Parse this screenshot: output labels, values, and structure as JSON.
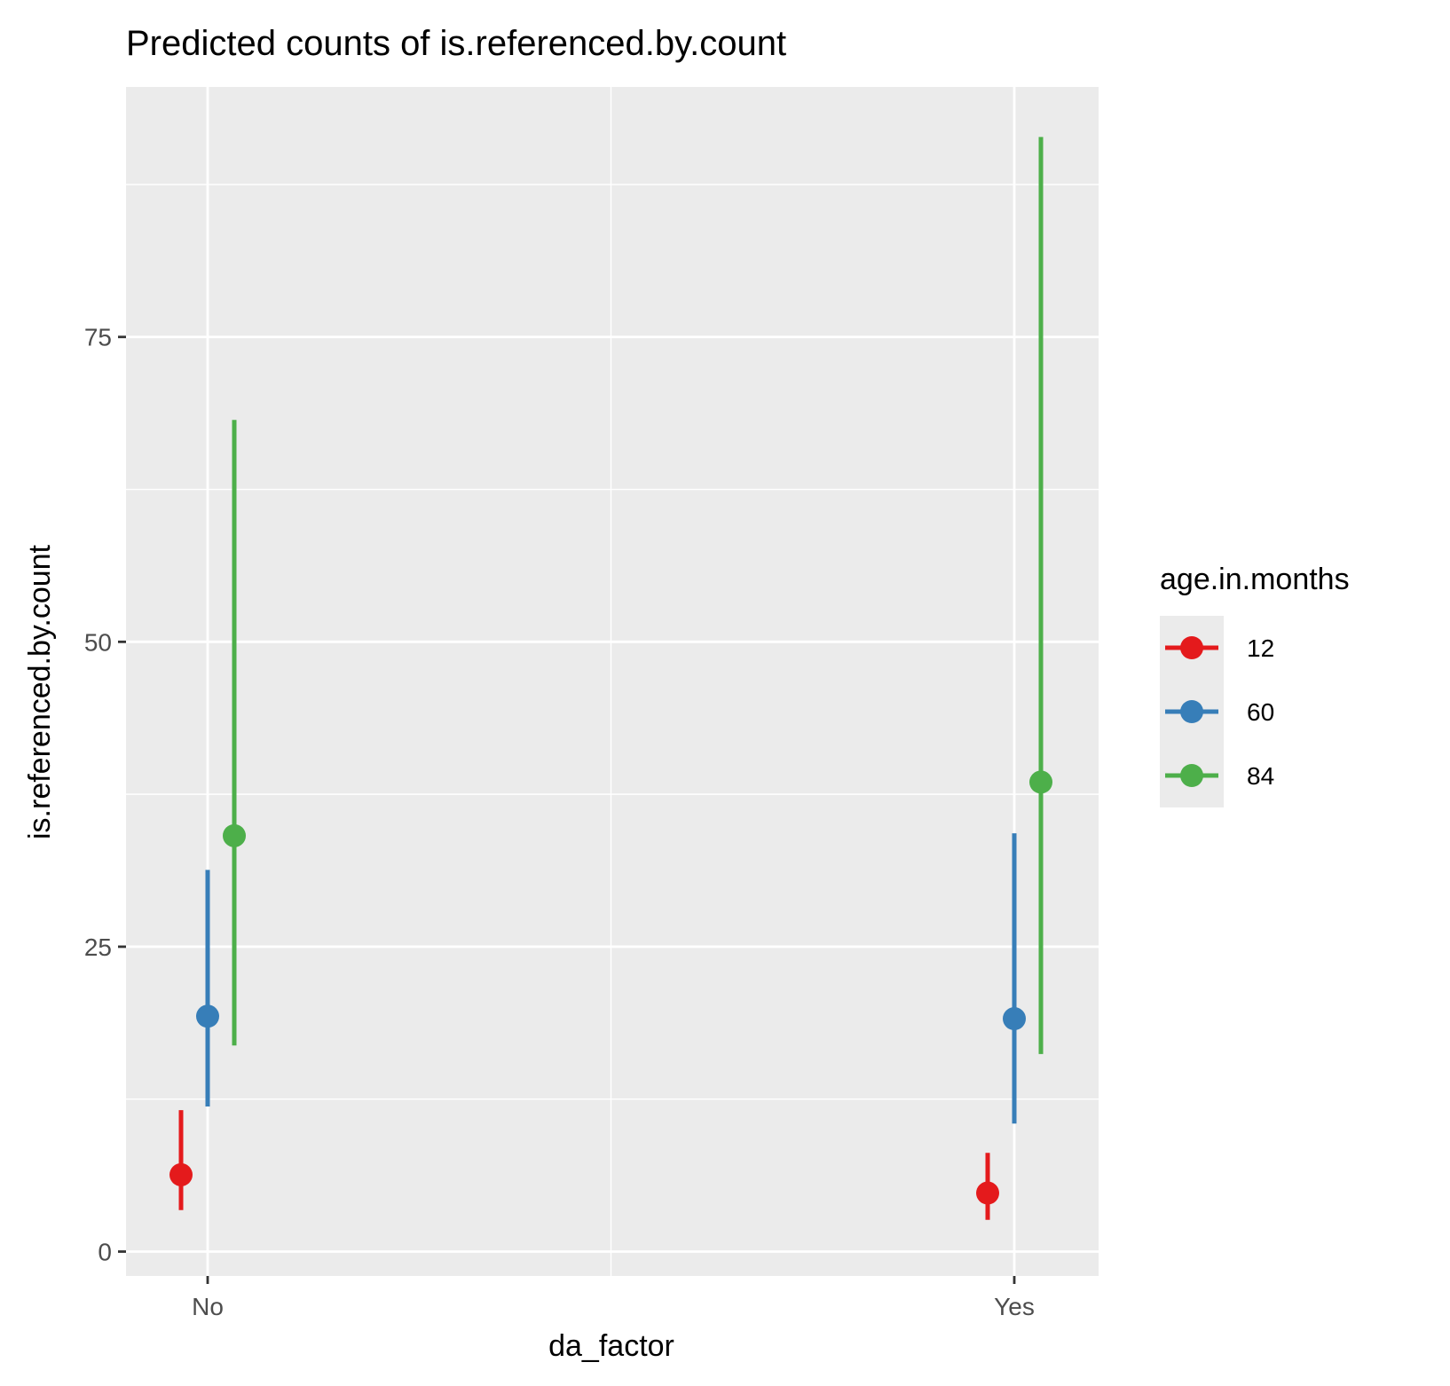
{
  "chart_data": {
    "type": "scatter",
    "title": "Predicted counts of is.referenced.by.count",
    "xlabel": "da_factor",
    "ylabel": "is.referenced.by.count",
    "categories": [
      "No",
      "Yes"
    ],
    "ylim": [
      -2,
      95.5
    ],
    "yticks": [
      0,
      25,
      50,
      75
    ],
    "ytick_labels": [
      "0",
      "25",
      "50",
      "75"
    ],
    "grid": true,
    "legend": {
      "title": "age.in.months",
      "position": "right"
    },
    "series": [
      {
        "name": "12",
        "color": "#e41a1c",
        "values": [
          6.3,
          4.8
        ],
        "lower": [
          3.4,
          2.6
        ],
        "upper": [
          11.6,
          8.1
        ]
      },
      {
        "name": "60",
        "color": "#377eb8",
        "values": [
          19.3,
          19.1
        ],
        "lower": [
          11.9,
          10.5
        ],
        "upper": [
          31.3,
          34.3
        ]
      },
      {
        "name": "84",
        "color": "#4daf4a",
        "values": [
          34.1,
          38.5
        ],
        "lower": [
          16.9,
          16.2
        ],
        "upper": [
          68.2,
          91.4
        ]
      }
    ]
  }
}
